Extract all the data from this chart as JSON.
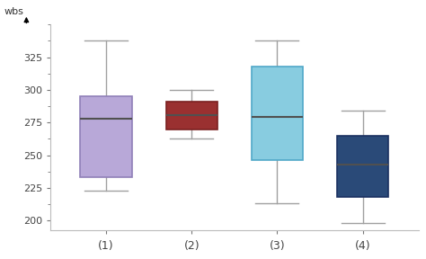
{
  "boxes": [
    {
      "label": "(1)",
      "whislo": 223,
      "q1": 233,
      "med": 278,
      "q3": 295,
      "whishi": 338,
      "color": "#b8a8d8",
      "edge_color": "#9080b8"
    },
    {
      "label": "(2)",
      "whislo": 263,
      "q1": 270,
      "med": 281,
      "q3": 291,
      "whishi": 300,
      "color": "#9a3030",
      "edge_color": "#7a2020"
    },
    {
      "label": "(3)",
      "whislo": 213,
      "q1": 246,
      "med": 279,
      "q3": 318,
      "whishi": 338,
      "color": "#88cce0",
      "edge_color": "#50a8c8"
    },
    {
      "label": "(4)",
      "whislo": 198,
      "q1": 218,
      "med": 243,
      "q3": 265,
      "whishi": 284,
      "color": "#2a4a78",
      "edge_color": "#1a3060"
    }
  ],
  "ylabel": "wbs",
  "ylim": [
    193,
    350
  ],
  "yticks": [
    200,
    225,
    250,
    275,
    300,
    325
  ],
  "positions": [
    1,
    2,
    3,
    4
  ],
  "xlim": [
    0.35,
    4.65
  ],
  "background_color": "#ffffff",
  "box_width": 0.6,
  "whisker_color": "#a0a0a0",
  "median_color": "#505050",
  "cap_color": "#a0a0a0",
  "spine_color": "#bbbbbb",
  "tick_color": "#777777",
  "label_color": "#444444"
}
